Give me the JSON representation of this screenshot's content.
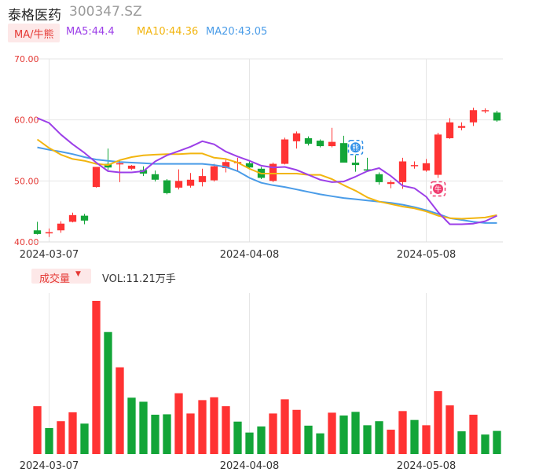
{
  "header": {
    "name": "泰格医药",
    "code": "300347.SZ"
  },
  "ma_legend": {
    "label": "MA/牛熊",
    "ma5": "MA5:44.4",
    "ma10": "MA10:44.36",
    "ma20": "MA20:43.05"
  },
  "volume_legend": {
    "label": "成交量",
    "value": "VOL:11.21万手"
  },
  "colors": {
    "up": "#ff3333",
    "down": "#13a538",
    "ma5": "#9c3fe8",
    "ma10": "#f2b50f",
    "ma20": "#4a9ce8",
    "axis_label": "#e53935"
  },
  "chart_data": [
    {
      "type": "candlestick",
      "title": "",
      "ylim": [
        40,
        70
      ],
      "y_ticks": [
        "70.00",
        "60.00",
        "50.00",
        "40.00"
      ],
      "x_tick_labels": [
        "2024-03-07",
        "2024-04-08",
        "2024-05-08"
      ],
      "x_tick_indices": [
        1,
        18,
        33
      ],
      "grid": true,
      "markers": [
        {
          "index": 27,
          "label": "熊",
          "position": "above"
        },
        {
          "index": 34,
          "label": "牛",
          "position": "below"
        }
      ],
      "candles": [
        {
          "o": 41.9,
          "h": 43.3,
          "l": 41.2,
          "c": 41.3
        },
        {
          "o": 41.4,
          "h": 42.2,
          "l": 40.8,
          "c": 41.6
        },
        {
          "o": 41.9,
          "h": 43.4,
          "l": 41.5,
          "c": 43.0
        },
        {
          "o": 43.3,
          "h": 44.8,
          "l": 43.2,
          "c": 44.4
        },
        {
          "o": 44.3,
          "h": 44.6,
          "l": 42.9,
          "c": 43.5
        },
        {
          "o": 49.0,
          "h": 52.3,
          "l": 48.9,
          "c": 52.3
        },
        {
          "o": 52.8,
          "h": 55.3,
          "l": 51.8,
          "c": 52.2
        },
        {
          "o": 52.9,
          "h": 53.5,
          "l": 49.8,
          "c": 52.9
        },
        {
          "o": 52.0,
          "h": 52.6,
          "l": 51.8,
          "c": 52.5
        },
        {
          "o": 51.8,
          "h": 52.4,
          "l": 50.8,
          "c": 51.2
        },
        {
          "o": 51.1,
          "h": 51.7,
          "l": 49.9,
          "c": 50.2
        },
        {
          "o": 50.1,
          "h": 50.3,
          "l": 47.8,
          "c": 48.0
        },
        {
          "o": 48.9,
          "h": 51.9,
          "l": 48.6,
          "c": 50.0
        },
        {
          "o": 49.2,
          "h": 51.3,
          "l": 48.9,
          "c": 50.2
        },
        {
          "o": 49.8,
          "h": 52.0,
          "l": 49.1,
          "c": 50.8
        },
        {
          "o": 50.1,
          "h": 52.8,
          "l": 49.9,
          "c": 52.4
        },
        {
          "o": 52.1,
          "h": 53.5,
          "l": 51.4,
          "c": 53.1
        },
        {
          "o": 53.1,
          "h": 53.8,
          "l": 51.5,
          "c": 53.1
        },
        {
          "o": 52.9,
          "h": 53.2,
          "l": 51.9,
          "c": 52.2
        },
        {
          "o": 52.0,
          "h": 52.3,
          "l": 50.3,
          "c": 50.5
        },
        {
          "o": 50.0,
          "h": 53.0,
          "l": 49.8,
          "c": 52.8
        },
        {
          "o": 52.8,
          "h": 57.1,
          "l": 52.7,
          "c": 56.8
        },
        {
          "o": 56.5,
          "h": 58.1,
          "l": 55.3,
          "c": 57.8
        },
        {
          "o": 57.0,
          "h": 57.3,
          "l": 55.8,
          "c": 56.1
        },
        {
          "o": 56.6,
          "h": 56.8,
          "l": 55.5,
          "c": 55.7
        },
        {
          "o": 55.7,
          "h": 58.7,
          "l": 55.5,
          "c": 56.4
        },
        {
          "o": 56.2,
          "h": 57.4,
          "l": 53.0,
          "c": 53.0
        },
        {
          "o": 53.0,
          "h": 54.2,
          "l": 51.5,
          "c": 52.6
        },
        {
          "o": 51.9,
          "h": 53.8,
          "l": 51.6,
          "c": 51.7
        },
        {
          "o": 51.1,
          "h": 51.4,
          "l": 49.4,
          "c": 49.8
        },
        {
          "o": 49.5,
          "h": 50.1,
          "l": 48.8,
          "c": 49.8
        },
        {
          "o": 49.8,
          "h": 53.8,
          "l": 48.7,
          "c": 53.2
        },
        {
          "o": 52.6,
          "h": 53.2,
          "l": 52.0,
          "c": 52.6
        },
        {
          "o": 51.7,
          "h": 53.6,
          "l": 51.5,
          "c": 52.9
        },
        {
          "o": 51.0,
          "h": 57.9,
          "l": 50.5,
          "c": 57.6
        },
        {
          "o": 57.0,
          "h": 60.3,
          "l": 56.9,
          "c": 59.6
        },
        {
          "o": 58.7,
          "h": 59.6,
          "l": 58.3,
          "c": 59.0
        },
        {
          "o": 59.6,
          "h": 62.0,
          "l": 59.0,
          "c": 61.6
        },
        {
          "o": 61.5,
          "h": 61.9,
          "l": 61.1,
          "c": 61.6
        },
        {
          "o": 61.2,
          "h": 61.5,
          "l": 59.7,
          "c": 59.9
        }
      ],
      "ma5_line": [
        60.3,
        59.5,
        57.6,
        56.0,
        54.6,
        53.0,
        51.6,
        51.4,
        51.4,
        51.6,
        53.2,
        54.2,
        54.9,
        55.6,
        56.5,
        56.0,
        54.8,
        54.0,
        53.3,
        52.5,
        52.2,
        52.3,
        51.8,
        51.0,
        50.2,
        49.8,
        49.9,
        50.7,
        51.6,
        52.1,
        50.8,
        49.2,
        48.8,
        47.4,
        44.9,
        42.9,
        42.9,
        43.0,
        43.4,
        44.3
      ],
      "ma10_line": [
        56.8,
        55.4,
        54.3,
        53.6,
        53.3,
        52.8,
        52.6,
        53.4,
        53.9,
        54.2,
        54.3,
        54.4,
        54.4,
        54.5,
        54.5,
        53.8,
        53.6,
        53.0,
        52.0,
        51.2,
        51.2,
        51.2,
        51.2,
        51.0,
        51.0,
        50.3,
        49.3,
        48.4,
        47.3,
        46.6,
        46.2,
        45.8,
        45.5,
        45.0,
        44.3,
        43.9,
        43.8,
        43.9,
        44.0,
        44.4
      ],
      "ma20_line": [
        55.5,
        55.1,
        54.8,
        54.4,
        53.9,
        53.5,
        53.3,
        53.1,
        53.0,
        52.9,
        52.8,
        52.8,
        52.8,
        52.8,
        52.8,
        52.6,
        52.3,
        51.6,
        50.5,
        49.7,
        49.3,
        49.0,
        48.6,
        48.2,
        47.8,
        47.5,
        47.2,
        47.0,
        46.8,
        46.6,
        46.4,
        46.1,
        45.7,
        45.2,
        44.6,
        43.9,
        43.6,
        43.3,
        43.1,
        43.1
      ]
    },
    {
      "type": "bar",
      "title": "成交量",
      "unit": "万手",
      "x_tick_labels": [
        "2024-03-07",
        "2024-04-08",
        "2024-05-08"
      ],
      "values": [
        11.8,
        6.4,
        8.1,
        10.3,
        7.5,
        37.8,
        30.1,
        21.4,
        13.9,
        12.9,
        9.7,
        9.8,
        15.0,
        10.0,
        13.3,
        14.0,
        11.8,
        8.0,
        5.3,
        6.8,
        10.0,
        13.5,
        10.9,
        7.0,
        5.1,
        10.2,
        9.5,
        10.4,
        7.1,
        8.1,
        6.0,
        10.6,
        8.4,
        7.1,
        15.5,
        12.0,
        5.6,
        9.7,
        4.8,
        5.7
      ],
      "directions": [
        "up",
        "down",
        "up",
        "up",
        "down",
        "up",
        "down",
        "up",
        "down",
        "down",
        "down",
        "down",
        "up",
        "up",
        "up",
        "up",
        "up",
        "down",
        "down",
        "down",
        "up",
        "up",
        "up",
        "down",
        "down",
        "up",
        "down",
        "down",
        "down",
        "down",
        "up",
        "up",
        "down",
        "up",
        "up",
        "up",
        "down",
        "up",
        "down",
        "down"
      ]
    }
  ]
}
